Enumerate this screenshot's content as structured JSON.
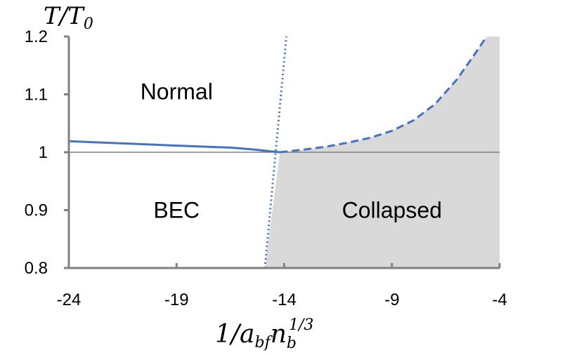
{
  "chart_data": {
    "type": "line",
    "ylabel": "T/T₀",
    "xlabel": "1/a_bf n_b^1/3",
    "ylabel_parts": {
      "main": "T/T",
      "sub": "0"
    },
    "xlabel_parts": {
      "lead": "1/a",
      "sub1": "bf",
      "mid": "n",
      "sub2": "b",
      "sup": "1/3"
    },
    "xlim": [
      -24,
      -4
    ],
    "ylim": [
      0.8,
      1.2
    ],
    "x_ticks": [
      -24,
      -19,
      -14,
      -9,
      -4
    ],
    "x_tick_labels": [
      "-24",
      "-19",
      "-14",
      "-9",
      "-4"
    ],
    "y_ticks": [
      0.8,
      0.9,
      1.0,
      1.1,
      1.2
    ],
    "y_tick_labels": [
      "0.8",
      "0.9",
      "1",
      "1.1",
      "1.2"
    ],
    "grid": false,
    "reference_line": {
      "y": 1.0,
      "color": "#808080"
    },
    "series": [
      {
        "style": "solid",
        "color": "#4472c4",
        "x": [
          -24,
          -22,
          -20,
          -18,
          -16.5,
          -15.5,
          -14.2
        ],
        "y": [
          1.019,
          1.016,
          1.013,
          1.01,
          1.008,
          1.005,
          1.0
        ]
      },
      {
        "style": "dashed",
        "color": "#4472c4",
        "x": [
          -14.2,
          -13,
          -12,
          -11,
          -10,
          -9,
          -8,
          -7,
          -6,
          -5.2,
          -4.6
        ],
        "y": [
          1.0,
          1.005,
          1.01,
          1.017,
          1.025,
          1.037,
          1.055,
          1.083,
          1.125,
          1.167,
          1.2
        ]
      },
      {
        "style": "dotted",
        "color": "#4472c4",
        "x": [
          -14.9,
          -13.9
        ],
        "y": [
          0.8,
          1.2
        ]
      }
    ],
    "collapsed_region": {
      "fill": "#d9d9d9",
      "boundary_left": {
        "x": [
          -14.9,
          -14.2
        ],
        "y": [
          0.8,
          1.0
        ]
      }
    },
    "annotations": [
      {
        "text": "Normal",
        "x": -19,
        "y": 1.105
      },
      {
        "text": "BEC",
        "x": -19,
        "y": 0.9
      },
      {
        "text": "Collapsed",
        "x": -9,
        "y": 0.9
      }
    ]
  }
}
